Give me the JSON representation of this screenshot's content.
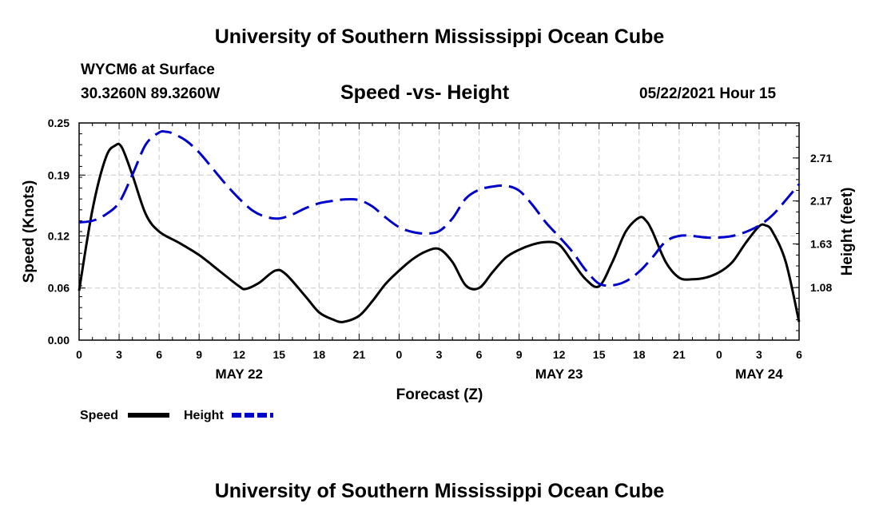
{
  "header": {
    "org_title": "University of Southern Mississippi Ocean Cube",
    "station": "WYCM6 at Surface",
    "coords": "30.3260N  89.3260W",
    "chart_title": "Speed -vs- Height",
    "timestamp": "05/22/2021 Hour 15"
  },
  "footer": {
    "org_title": "University of Southern Mississippi Ocean Cube"
  },
  "chart_data": {
    "type": "line",
    "title": "Speed -vs- Height",
    "xlabel": "Forecast (Z)",
    "ylabel": "Speed (Knots)",
    "y2label": "Height (feet)",
    "x_range": [
      0,
      54
    ],
    "x_tick_hours": [
      0,
      3,
      6,
      9,
      12,
      15,
      18,
      21,
      24,
      27,
      30,
      33,
      36,
      39,
      42,
      45,
      48,
      51,
      54
    ],
    "x_tick_labels": [
      "0",
      "3",
      "6",
      "9",
      "12",
      "15",
      "18",
      "21",
      "0",
      "3",
      "6",
      "9",
      "12",
      "15",
      "18",
      "21",
      "0",
      "3",
      "6"
    ],
    "date_labels": [
      {
        "hour": 12,
        "label": "MAY 22"
      },
      {
        "hour": 36,
        "label": "MAY 23"
      },
      {
        "hour": 51,
        "label": "MAY 24"
      }
    ],
    "ylim": [
      0,
      0.25
    ],
    "y_ticks": [
      0.0,
      0.06,
      0.12,
      0.19,
      0.25
    ],
    "y_tick_labels": [
      "0.00",
      "0.06",
      "0.12",
      "0.19",
      "0.25"
    ],
    "y2lim": [
      0.42,
      3.15
    ],
    "y2_ticks": [
      1.08,
      1.63,
      2.17,
      2.71
    ],
    "y2_tick_labels": [
      "1.08",
      "1.63",
      "2.17",
      "2.71"
    ],
    "grid": true,
    "legend_position": "bottom-left",
    "series": [
      {
        "name": "Speed",
        "axis": "left",
        "color": "#000000",
        "style": "solid",
        "x": [
          0,
          1,
          2,
          2.7,
          3.2,
          4,
          5,
          6,
          7.5,
          9,
          10.5,
          12,
          12.5,
          13.5,
          14.7,
          15.5,
          17,
          18,
          19,
          19.8,
          21,
          22,
          23,
          24,
          25,
          26,
          27,
          28,
          29,
          30,
          31,
          32,
          33,
          34,
          35,
          36,
          37,
          38,
          39,
          40,
          41,
          42,
          42.5,
          43,
          44,
          45,
          46,
          47,
          48,
          49,
          50,
          51,
          51.5,
          52,
          53,
          54
        ],
        "values": [
          0.057,
          0.15,
          0.21,
          0.224,
          0.222,
          0.19,
          0.145,
          0.125,
          0.112,
          0.098,
          0.08,
          0.062,
          0.059,
          0.066,
          0.08,
          0.076,
          0.05,
          0.032,
          0.024,
          0.021,
          0.028,
          0.045,
          0.065,
          0.08,
          0.093,
          0.102,
          0.105,
          0.09,
          0.063,
          0.06,
          0.078,
          0.095,
          0.104,
          0.11,
          0.113,
          0.11,
          0.09,
          0.07,
          0.062,
          0.09,
          0.125,
          0.141,
          0.138,
          0.125,
          0.09,
          0.072,
          0.07,
          0.072,
          0.078,
          0.09,
          0.112,
          0.131,
          0.132,
          0.125,
          0.09,
          0.021
        ]
      },
      {
        "name": "Height",
        "axis": "right",
        "color": "#0000cc",
        "style": "dashed",
        "x": [
          0,
          1,
          2,
          3,
          4,
          5,
          6,
          6.5,
          7,
          8,
          9,
          10,
          11,
          12,
          13,
          14,
          15,
          16,
          17,
          18,
          19,
          20,
          21,
          22,
          23,
          24,
          25,
          26,
          27,
          28,
          29,
          30,
          31,
          32,
          33,
          34,
          35,
          36,
          37,
          38,
          39,
          40,
          41,
          42,
          43,
          44,
          45,
          46,
          47,
          48,
          49,
          50,
          51,
          52,
          53,
          54
        ],
        "values": [
          1.9,
          1.92,
          2.0,
          2.15,
          2.5,
          2.88,
          3.03,
          3.04,
          3.02,
          2.93,
          2.78,
          2.58,
          2.38,
          2.2,
          2.05,
          1.97,
          1.95,
          2.0,
          2.08,
          2.14,
          2.17,
          2.19,
          2.18,
          2.1,
          1.96,
          1.84,
          1.78,
          1.76,
          1.79,
          1.95,
          2.2,
          2.31,
          2.35,
          2.36,
          2.3,
          2.12,
          1.9,
          1.72,
          1.53,
          1.3,
          1.13,
          1.11,
          1.16,
          1.28,
          1.46,
          1.66,
          1.73,
          1.73,
          1.71,
          1.71,
          1.73,
          1.78,
          1.86,
          1.99,
          2.18,
          2.38
        ]
      }
    ]
  }
}
